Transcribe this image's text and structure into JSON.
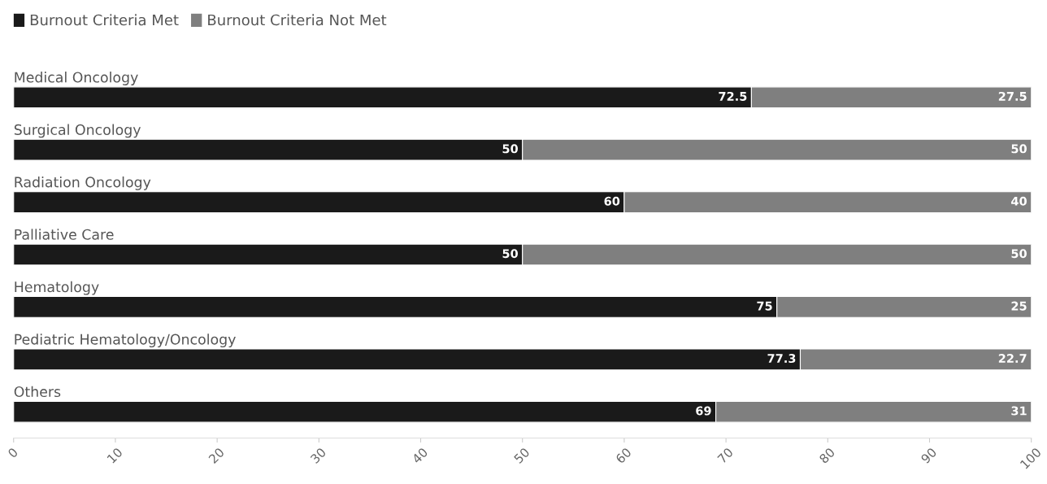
{
  "chart_data": {
    "type": "bar",
    "orientation": "horizontal",
    "stacked": true,
    "categories": [
      "Medical Oncology",
      "Surgical Oncology",
      "Radiation Oncology",
      "Palliative Care",
      "Hematology",
      "Pediatric Hematology/Oncology",
      "Others"
    ],
    "series": [
      {
        "name": "Burnout Criteria Met",
        "color": "#1a1a1a",
        "values": [
          72.5,
          50,
          60,
          50,
          75,
          77.3,
          69
        ]
      },
      {
        "name": "Burnout Criteria Not Met",
        "color": "#7f7f7f",
        "values": [
          27.5,
          50,
          40,
          50,
          25,
          22.7,
          31
        ]
      }
    ],
    "xlim": [
      0,
      100
    ],
    "xticks": [
      0,
      10,
      20,
      30,
      40,
      50,
      60,
      70,
      80,
      90,
      100
    ],
    "data_labels": true,
    "legend": "top left",
    "grid": false
  }
}
